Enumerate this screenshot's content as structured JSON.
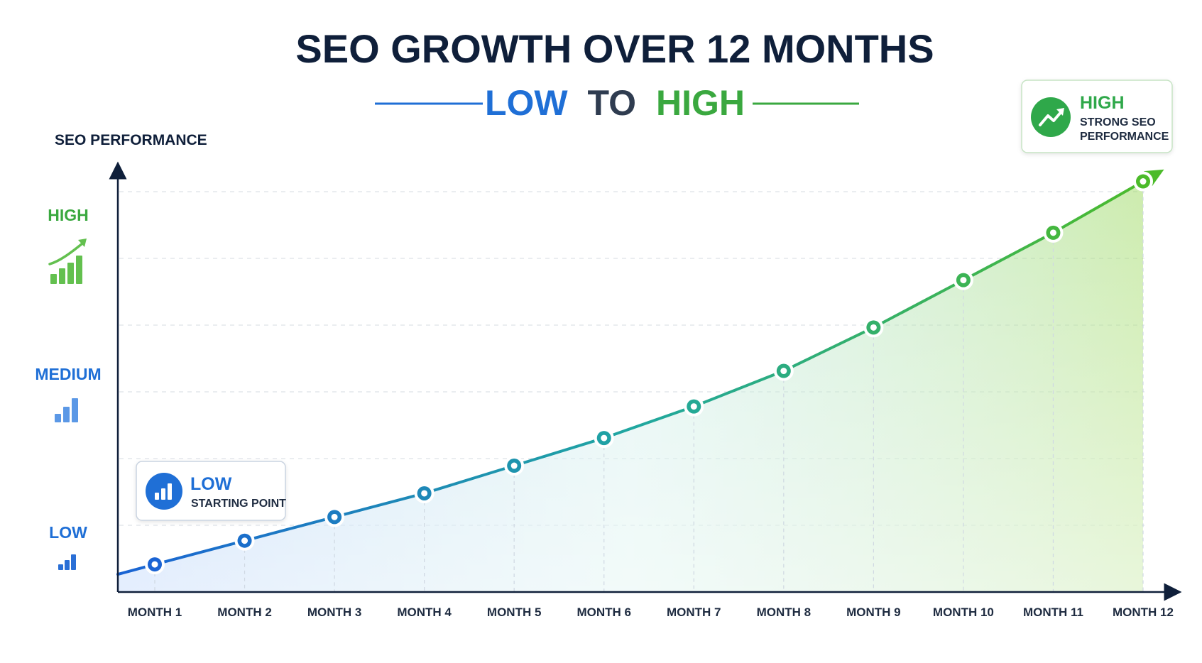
{
  "title": "SEO GROWTH OVER 12 MONTHS",
  "subtitle": {
    "low": "LOW",
    "to": "TO",
    "high": "HIGH"
  },
  "colors": {
    "title": "#0f1f3a",
    "blue": "#1f6fd6",
    "green": "#3aa83f",
    "axis": "#0f1f3a",
    "grid": "#d8dde4"
  },
  "chart_data": {
    "type": "line",
    "ylabel": "SEO PERFORMANCE",
    "categories": [
      "MONTH 1",
      "MONTH 2",
      "MONTH 3",
      "MONTH 4",
      "MONTH 5",
      "MONTH 6",
      "MONTH 7",
      "MONTH 8",
      "MONTH 9",
      "MONTH 10",
      "MONTH 11",
      "MONTH 12"
    ],
    "series": [
      {
        "values": [
          7,
          13,
          19,
          25,
          32,
          39,
          47,
          56,
          67,
          79,
          91,
          104
        ]
      }
    ],
    "ylim": [
      0,
      105
    ],
    "ytick_labels": [
      {
        "label": "LOW",
        "icon": "bar-chart-small-icon",
        "color": "#1f6fd6",
        "value": 15
      },
      {
        "label": "MEDIUM",
        "icon": "bar-chart-medium-icon",
        "color": "#1f6fd6",
        "value": 55
      },
      {
        "label": "HIGH",
        "icon": "bar-chart-growth-icon",
        "color": "#3aa83f",
        "value": 95
      }
    ],
    "grid": true
  },
  "callouts": {
    "low": {
      "title": "LOW",
      "text": "STARTING POINT",
      "icon": "bar-chart-icon"
    },
    "high": {
      "title": "HIGH",
      "line1": "STRONG SEO",
      "line2": "PERFORMANCE",
      "icon": "trend-up-icon"
    }
  }
}
